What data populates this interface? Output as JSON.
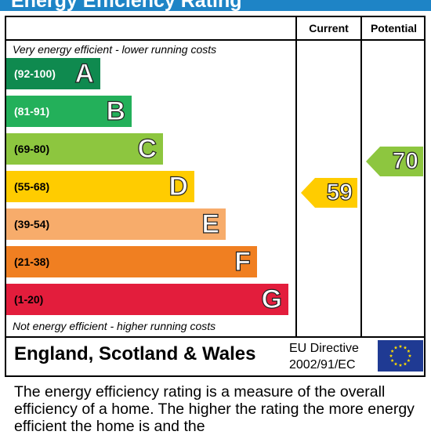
{
  "title": "Energy Efficiency Rating",
  "columns": {
    "current": "Current",
    "potential": "Potential"
  },
  "top_note": "Very energy efficient - lower running costs",
  "bottom_note": "Not energy efficient - higher running costs",
  "bands": [
    {
      "range": "(92-100)",
      "letter": "A",
      "color": "#0f8a4f",
      "range_color": "#ffffff"
    },
    {
      "range": "(81-91)",
      "letter": "B",
      "color": "#23b05a",
      "range_color": "#ffffff"
    },
    {
      "range": "(69-80)",
      "letter": "C",
      "color": "#8dc63f",
      "range_color": "#000000"
    },
    {
      "range": "(55-68)",
      "letter": "D",
      "color": "#ffcc00",
      "range_color": "#000000"
    },
    {
      "range": "(39-54)",
      "letter": "E",
      "color": "#f7ac6b",
      "range_color": "#000000"
    },
    {
      "range": "(21-38)",
      "letter": "F",
      "color": "#f07f21",
      "range_color": "#000000"
    },
    {
      "range": "(1-20)",
      "letter": "G",
      "color": "#e31d3c",
      "range_color": "#000000"
    }
  ],
  "current": {
    "value": "59",
    "band": "D",
    "color": "#ffcc00"
  },
  "potential": {
    "value": "70",
    "band": "C",
    "color": "#8dc63f"
  },
  "region": "England, Scotland & Wales",
  "directive": {
    "line1": "EU Directive",
    "line2": "2002/91/EC"
  },
  "flag_icon": "eu-flag-icon",
  "description": "The energy efficiency rating is a measure of the overall efficiency of a home. The higher the rating the more energy efficient the home is and the"
}
